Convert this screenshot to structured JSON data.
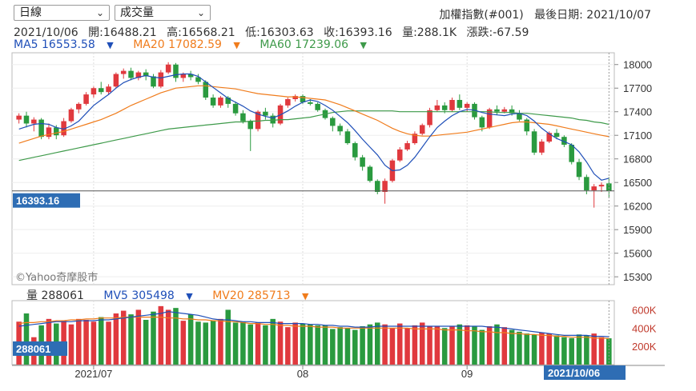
{
  "controls": {
    "period": "日線",
    "indicator": "成交量"
  },
  "header": {
    "index_name": "加權指數(#001)",
    "last_date_label": "最後日期:",
    "last_date": "2021/10/07"
  },
  "ohlc": {
    "date": "2021/10/06",
    "open": "開:16488.21",
    "high": "高:16568.21",
    "low": "低:16303.63",
    "close": "收:16393.16",
    "volume": "量:288.1K",
    "change": "漲跌:-67.59"
  },
  "ma_legend": {
    "ma5": "MA5 16553.58",
    "ma20": "MA20 17082.59",
    "ma60": "MA60 17239.06"
  },
  "vol_legend": {
    "vol": "量 288061",
    "mv5": "MV5 305498",
    "mv20": "MV20 285713"
  },
  "watermark": "©Yahoo奇摩股市",
  "price_marker": "16393.16",
  "date_marker": "2021/10/06",
  "vol_marker": "288061",
  "colors": {
    "up": "#e0393e",
    "down": "#2a9a3f",
    "ma5": "#1f4fb8",
    "ma20": "#f07c1c",
    "ma60": "#3e9a4a",
    "marker_bg": "#2e6db4"
  },
  "chart_data": [
    {
      "type": "candlestick",
      "title": "",
      "ylim": [
        15200,
        18150
      ],
      "yticks": [
        "18000",
        "17700",
        "17400",
        "17100",
        "16800",
        "16500",
        "16200",
        "15900",
        "15600",
        "15300"
      ],
      "xticks": [
        "2021/07",
        "08",
        "09"
      ],
      "candles": [
        [
          17300,
          17380,
          17250,
          17350
        ],
        [
          17350,
          17400,
          17200,
          17250
        ],
        [
          17250,
          17330,
          17150,
          17300
        ],
        [
          17300,
          17320,
          17050,
          17080
        ],
        [
          17080,
          17250,
          17050,
          17200
        ],
        [
          17200,
          17230,
          17050,
          17100
        ],
        [
          17100,
          17320,
          17080,
          17280
        ],
        [
          17280,
          17450,
          17260,
          17430
        ],
        [
          17430,
          17520,
          17380,
          17500
        ],
        [
          17500,
          17650,
          17480,
          17620
        ],
        [
          17620,
          17720,
          17580,
          17700
        ],
        [
          17700,
          17780,
          17620,
          17650
        ],
        [
          17650,
          17750,
          17620,
          17720
        ],
        [
          17720,
          17900,
          17700,
          17880
        ],
        [
          17880,
          17950,
          17820,
          17920
        ],
        [
          17920,
          17960,
          17800,
          17830
        ],
        [
          17830,
          17920,
          17800,
          17900
        ],
        [
          17900,
          17940,
          17800,
          17850
        ],
        [
          17850,
          17880,
          17700,
          17720
        ],
        [
          17720,
          17930,
          17700,
          17900
        ],
        [
          17900,
          18030,
          17880,
          18000
        ],
        [
          18000,
          18020,
          17780,
          17830
        ],
        [
          17830,
          17900,
          17780,
          17880
        ],
        [
          17880,
          17920,
          17800,
          17840
        ],
        [
          17840,
          17880,
          17750,
          17780
        ],
        [
          17780,
          17800,
          17550,
          17580
        ],
        [
          17580,
          17620,
          17450,
          17480
        ],
        [
          17480,
          17600,
          17450,
          17580
        ],
        [
          17580,
          17600,
          17450,
          17500
        ],
        [
          17500,
          17530,
          17350,
          17380
        ],
        [
          17380,
          17420,
          17250,
          17280
        ],
        [
          17280,
          17300,
          16900,
          17180
        ],
        [
          17180,
          17420,
          17150,
          17400
        ],
        [
          17400,
          17450,
          17300,
          17350
        ],
        [
          17350,
          17380,
          17200,
          17250
        ],
        [
          17250,
          17500,
          17230,
          17480
        ],
        [
          17480,
          17580,
          17450,
          17560
        ],
        [
          17560,
          17620,
          17530,
          17600
        ],
        [
          17600,
          17620,
          17500,
          17520
        ],
        [
          17520,
          17560,
          17480,
          17500
        ],
        [
          17500,
          17520,
          17400,
          17420
        ],
        [
          17420,
          17440,
          17300,
          17320
        ],
        [
          17320,
          17340,
          17150,
          17220
        ],
        [
          17220,
          17250,
          17100,
          17150
        ],
        [
          17150,
          17180,
          16980,
          17000
        ],
        [
          17000,
          17020,
          16780,
          16820
        ],
        [
          16820,
          16850,
          16650,
          16700
        ],
        [
          16700,
          16720,
          16500,
          16520
        ],
        [
          16520,
          16540,
          16350,
          16380
        ],
        [
          16380,
          16550,
          16230,
          16520
        ],
        [
          16520,
          16800,
          16500,
          16780
        ],
        [
          16780,
          16950,
          16760,
          16920
        ],
        [
          16920,
          17030,
          16900,
          17000
        ],
        [
          17000,
          17150,
          16980,
          17120
        ],
        [
          17120,
          17250,
          17100,
          17230
        ],
        [
          17230,
          17450,
          17200,
          17420
        ],
        [
          17420,
          17550,
          17400,
          17480
        ],
        [
          17480,
          17520,
          17380,
          17420
        ],
        [
          17420,
          17580,
          17400,
          17550
        ],
        [
          17550,
          17620,
          17420,
          17450
        ],
        [
          17450,
          17520,
          17400,
          17500
        ],
        [
          17500,
          17520,
          17300,
          17330
        ],
        [
          17330,
          17350,
          17150,
          17200
        ],
        [
          17200,
          17450,
          17180,
          17430
        ],
        [
          17430,
          17480,
          17360,
          17400
        ],
        [
          17400,
          17460,
          17380,
          17430
        ],
        [
          17430,
          17480,
          17350,
          17380
        ],
        [
          17380,
          17420,
          17280,
          17300
        ],
        [
          17300,
          17320,
          17100,
          17150
        ],
        [
          17150,
          17180,
          16850,
          16880
        ],
        [
          16880,
          17050,
          16850,
          17020
        ],
        [
          17020,
          17150,
          17000,
          17130
        ],
        [
          17130,
          17180,
          17050,
          17080
        ],
        [
          17080,
          17100,
          16950,
          16980
        ],
        [
          16980,
          17000,
          16730,
          16760
        ],
        [
          16760,
          16800,
          16530,
          16570
        ],
        [
          16570,
          16600,
          16350,
          16400
        ],
        [
          16400,
          16480,
          16180,
          16450
        ],
        [
          16450,
          16500,
          16380,
          16470
        ],
        [
          16488.21,
          16568.21,
          16303.63,
          16393.16
        ]
      ],
      "ma5": [
        17180,
        17210,
        17240,
        17250,
        17240,
        17200,
        17180,
        17220,
        17280,
        17380,
        17480,
        17550,
        17620,
        17700,
        17770,
        17810,
        17840,
        17860,
        17840,
        17830,
        17850,
        17870,
        17880,
        17880,
        17850,
        17780,
        17710,
        17640,
        17570,
        17520,
        17470,
        17410,
        17370,
        17340,
        17320,
        17360,
        17410,
        17470,
        17520,
        17550,
        17530,
        17480,
        17420,
        17340,
        17260,
        17160,
        17050,
        16950,
        16850,
        16720,
        16650,
        16660,
        16720,
        16820,
        16950,
        17080,
        17200,
        17280,
        17350,
        17400,
        17430,
        17420,
        17390,
        17370,
        17360,
        17350,
        17370,
        17380,
        17350,
        17280,
        17190,
        17120,
        17060,
        17020,
        16980,
        16890,
        16760,
        16610,
        16530,
        16553.58
      ],
      "ma20": [
        17000,
        17030,
        17060,
        17090,
        17110,
        17130,
        17150,
        17180,
        17210,
        17240,
        17270,
        17300,
        17340,
        17380,
        17430,
        17480,
        17520,
        17560,
        17600,
        17640,
        17670,
        17700,
        17710,
        17720,
        17730,
        17730,
        17720,
        17710,
        17700,
        17690,
        17670,
        17650,
        17630,
        17620,
        17610,
        17600,
        17590,
        17590,
        17580,
        17570,
        17560,
        17550,
        17520,
        17490,
        17450,
        17410,
        17370,
        17330,
        17290,
        17240,
        17190,
        17150,
        17120,
        17100,
        17090,
        17090,
        17100,
        17110,
        17120,
        17130,
        17140,
        17160,
        17180,
        17200,
        17220,
        17240,
        17260,
        17270,
        17270,
        17260,
        17250,
        17240,
        17220,
        17200,
        17180,
        17160,
        17140,
        17120,
        17100,
        17082.59
      ],
      "ma60": [
        16780,
        16800,
        16820,
        16840,
        16860,
        16880,
        16900,
        16920,
        16940,
        16960,
        16980,
        17000,
        17020,
        17040,
        17060,
        17080,
        17100,
        17120,
        17140,
        17160,
        17180,
        17190,
        17200,
        17210,
        17220,
        17230,
        17240,
        17250,
        17260,
        17270,
        17270,
        17280,
        17280,
        17290,
        17290,
        17300,
        17300,
        17310,
        17320,
        17330,
        17350,
        17370,
        17390,
        17400,
        17410,
        17410,
        17410,
        17410,
        17410,
        17410,
        17410,
        17400,
        17400,
        17400,
        17400,
        17400,
        17400,
        17400,
        17400,
        17400,
        17400,
        17400,
        17400,
        17400,
        17390,
        17390,
        17390,
        17380,
        17380,
        17370,
        17360,
        17350,
        17340,
        17330,
        17320,
        17300,
        17290,
        17270,
        17260,
        17239.06
      ]
    },
    {
      "type": "bar",
      "title": "",
      "ylim": [
        0,
        700
      ],
      "yticks": [
        "600K",
        "400K",
        "200K"
      ],
      "volumes": [
        470,
        560,
        300,
        430,
        500,
        450,
        480,
        440,
        500,
        490,
        470,
        520,
        470,
        560,
        590,
        550,
        600,
        490,
        580,
        640,
        600,
        620,
        480,
        550,
        470,
        460,
        480,
        500,
        600,
        460,
        470,
        440,
        460,
        430,
        500,
        470,
        410,
        460,
        450,
        440,
        430,
        430,
        390,
        410,
        400,
        380,
        420,
        440,
        460,
        440,
        400,
        450,
        400,
        430,
        460,
        420,
        420,
        400,
        420,
        440,
        430,
        420,
        380,
        420,
        440,
        410,
        380,
        360,
        340,
        330,
        350,
        340,
        320,
        300,
        290,
        330,
        320,
        340,
        300,
        288
      ],
      "mv5": [
        420,
        430,
        440,
        450,
        460,
        470,
        470,
        470,
        480,
        480,
        480,
        490,
        490,
        500,
        510,
        520,
        530,
        540,
        550,
        560,
        580,
        570,
        560,
        550,
        540,
        520,
        500,
        490,
        490,
        480,
        470,
        470,
        460,
        460,
        460,
        450,
        450,
        450,
        450,
        440,
        440,
        430,
        430,
        420,
        420,
        410,
        410,
        410,
        420,
        420,
        420,
        420,
        420,
        420,
        420,
        420,
        420,
        420,
        420,
        420,
        420,
        420,
        420,
        410,
        410,
        400,
        390,
        380,
        370,
        360,
        350,
        340,
        330,
        320,
        320,
        320,
        320,
        310,
        310,
        305
      ],
      "mv20": [
        450,
        460,
        460,
        470,
        470,
        480,
        480,
        490,
        490,
        500,
        500,
        510,
        510,
        510,
        520,
        520,
        520,
        520,
        520,
        520,
        510,
        510,
        500,
        500,
        490,
        490,
        480,
        480,
        470,
        470,
        460,
        450,
        450,
        440,
        440,
        430,
        430,
        420,
        420,
        420,
        410,
        410,
        410,
        400,
        400,
        400,
        400,
        400,
        400,
        400,
        400,
        400,
        400,
        390,
        390,
        390,
        390,
        380,
        380,
        380,
        370,
        370,
        360,
        360,
        350,
        350,
        340,
        340,
        330,
        330,
        320,
        320,
        310,
        310,
        300,
        300,
        300,
        290,
        290,
        286
      ]
    }
  ]
}
